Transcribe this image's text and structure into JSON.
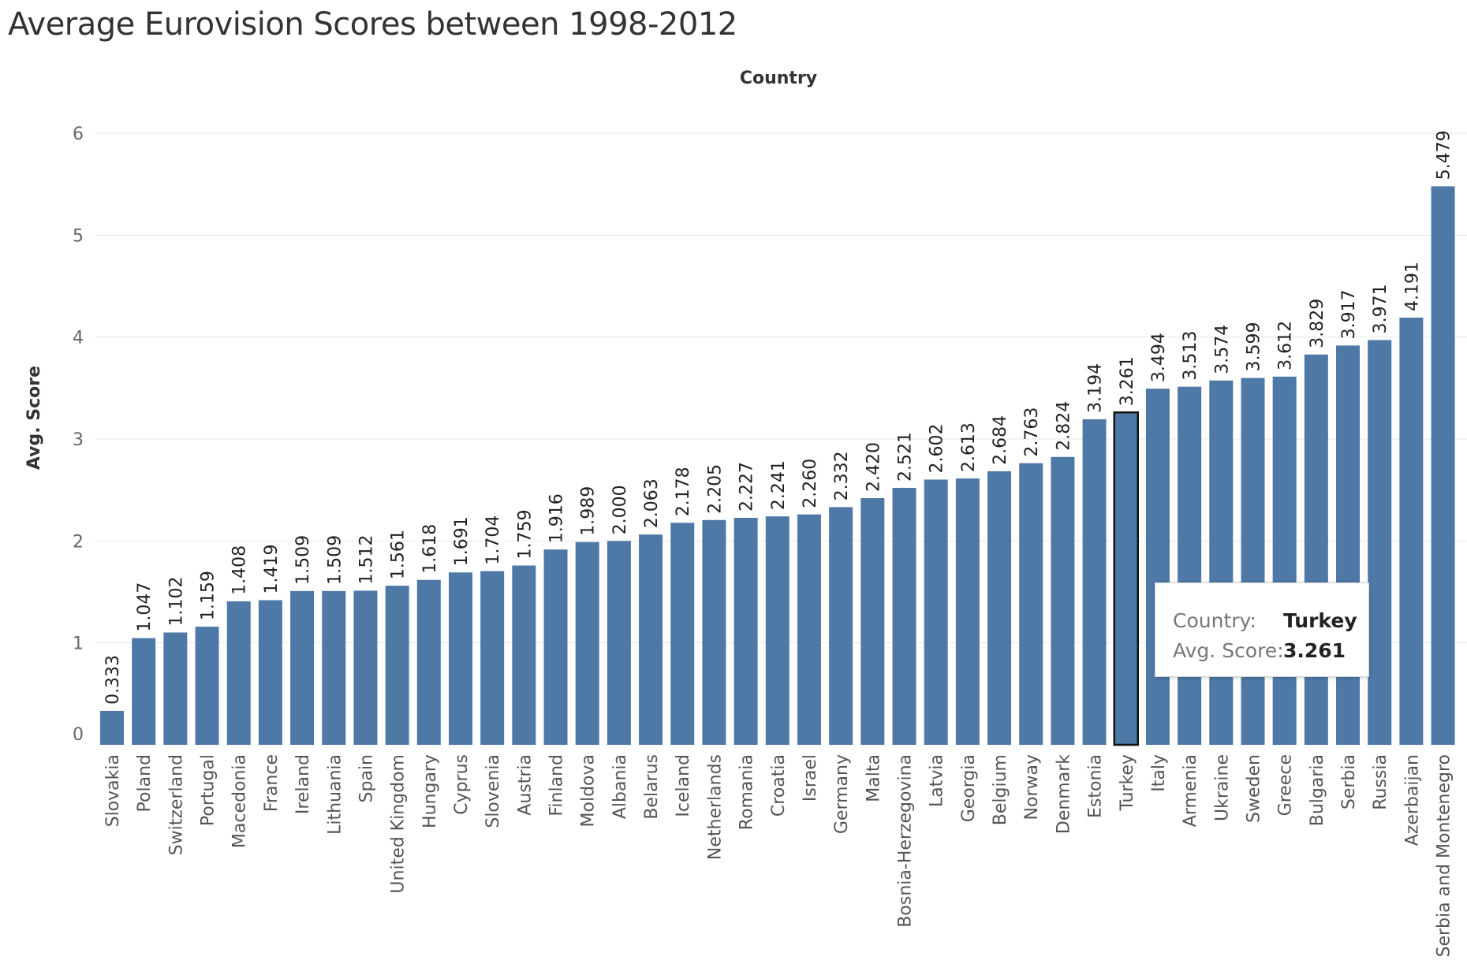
{
  "chart_data": {
    "type": "bar",
    "title": "Average Eurovision Scores between 1998-2012",
    "xlabel": "Country",
    "ylabel": "Avg. Score",
    "ylim": [
      0,
      6.3
    ],
    "yticks": [
      0,
      1,
      2,
      3,
      4,
      5,
      6
    ],
    "grid": true,
    "bar_color": "#4e79a7",
    "categories": [
      "Slovakia",
      "Poland",
      "Switzerland",
      "Portugal",
      "Macedonia",
      "France",
      "Ireland",
      "Lithuania",
      "Spain",
      "United Kingdom",
      "Hungary",
      "Cyprus",
      "Slovenia",
      "Austria",
      "Finland",
      "Moldova",
      "Albania",
      "Belarus",
      "Iceland",
      "Netherlands",
      "Romania",
      "Croatia",
      "Israel",
      "Germany",
      "Malta",
      "Bosnia-Herzegovina",
      "Latvia",
      "Georgia",
      "Belgium",
      "Norway",
      "Denmark",
      "Estonia",
      "Turkey",
      "Italy",
      "Armenia",
      "Ukraine",
      "Sweden",
      "Greece",
      "Bulgaria",
      "Serbia",
      "Russia",
      "Azerbaijan",
      "Serbia and Montenegro"
    ],
    "values": [
      0.333,
      1.047,
      1.102,
      1.159,
      1.408,
      1.419,
      1.509,
      1.509,
      1.512,
      1.561,
      1.618,
      1.691,
      1.704,
      1.759,
      1.916,
      1.989,
      2.0,
      2.063,
      2.178,
      2.205,
      2.227,
      2.241,
      2.26,
      2.332,
      2.42,
      2.521,
      2.602,
      2.613,
      2.684,
      2.763,
      2.824,
      3.194,
      3.261,
      3.494,
      3.513,
      3.574,
      3.599,
      3.612,
      3.829,
      3.917,
      3.971,
      4.191,
      5.479
    ],
    "labels": [
      "0.333",
      "1.047",
      "1.102",
      "1.159",
      "1.408",
      "1.419",
      "1.509",
      "1.509",
      "1.512",
      "1.561",
      "1.618",
      "1.691",
      "1.704",
      "1.759",
      "1.916",
      "1.989",
      "2.000",
      "2.063",
      "2.178",
      "2.205",
      "2.227",
      "2.241",
      "2.260",
      "2.332",
      "2.420",
      "2.521",
      "2.602",
      "2.613",
      "2.684",
      "2.763",
      "2.824",
      "3.194",
      "3.261",
      "3.494",
      "3.513",
      "3.574",
      "3.599",
      "3.612",
      "3.829",
      "3.917",
      "3.971",
      "4.191",
      "5.479"
    ],
    "highlighted": "Turkey"
  },
  "tooltip": {
    "country_key": "Country:",
    "country_value": "Turkey",
    "score_key": "Avg. Score:",
    "score_value": "3.261"
  }
}
